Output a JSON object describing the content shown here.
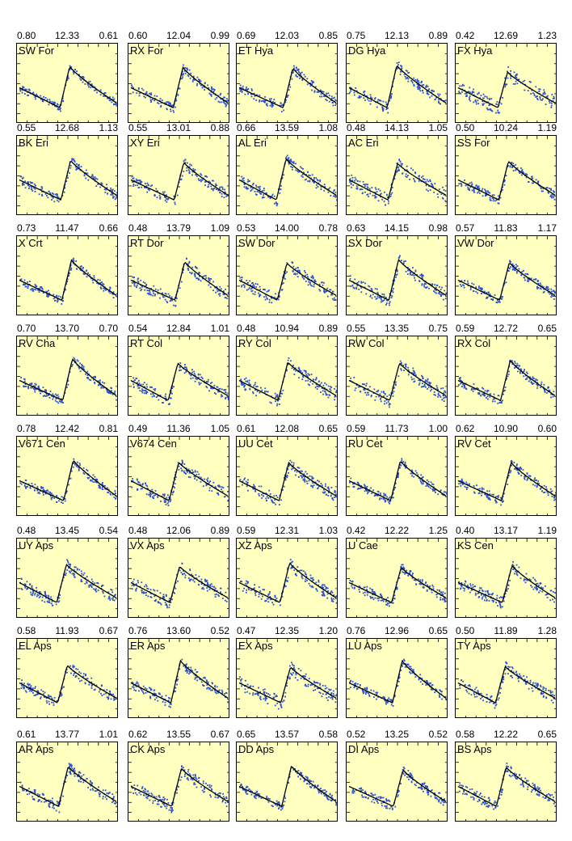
{
  "colors": {
    "panel_bg": "#ffffc0",
    "points": "#2a50d0",
    "curve": "#000000",
    "frame": "#000000"
  },
  "chart_data": [
    {
      "type": "scatter",
      "title": "SW For",
      "header": [
        "0.80",
        "12.33",
        "0.61"
      ]
    },
    {
      "type": "scatter",
      "title": "RX For",
      "header": [
        "0.60",
        "12.04",
        "0.99"
      ]
    },
    {
      "type": "scatter",
      "title": "ET Hya",
      "header": [
        "0.69",
        "12.03",
        "0.85"
      ]
    },
    {
      "type": "scatter",
      "title": "DG Hya",
      "header": [
        "0.75",
        "12.13",
        "0.89"
      ]
    },
    {
      "type": "scatter",
      "title": "FX Hya",
      "header": [
        "0.42",
        "12.69",
        "1.23"
      ]
    },
    {
      "type": "scatter",
      "title": "BK Eri",
      "header": [
        "0.55",
        "12.68",
        "1.13"
      ]
    },
    {
      "type": "scatter",
      "title": "XY Eri",
      "header": [
        "0.55",
        "13.01",
        "0.88"
      ]
    },
    {
      "type": "scatter",
      "title": "AL Eri",
      "header": [
        "0.66",
        "13.59",
        "1.08"
      ]
    },
    {
      "type": "scatter",
      "title": "AC Eri",
      "header": [
        "0.48",
        "14.13",
        "1.05"
      ]
    },
    {
      "type": "scatter",
      "title": "SS For",
      "header": [
        "0.50",
        "10.24",
        "1.19"
      ]
    },
    {
      "type": "scatter",
      "title": "X Crt",
      "header": [
        "0.73",
        "11.47",
        "0.66"
      ]
    },
    {
      "type": "scatter",
      "title": "RT Dor",
      "header": [
        "0.48",
        "13.79",
        "1.09"
      ]
    },
    {
      "type": "scatter",
      "title": "SW Dor",
      "header": [
        "0.53",
        "14.00",
        "0.78"
      ]
    },
    {
      "type": "scatter",
      "title": "SX Dor",
      "header": [
        "0.63",
        "14.15",
        "0.98"
      ]
    },
    {
      "type": "scatter",
      "title": "VW Dor",
      "header": [
        "0.57",
        "11.83",
        "1.17"
      ]
    },
    {
      "type": "scatter",
      "title": "RV Cha",
      "header": [
        "0.70",
        "13.70",
        "0.70"
      ]
    },
    {
      "type": "scatter",
      "title": "RT Col",
      "header": [
        "0.54",
        "12.84",
        "1.01"
      ]
    },
    {
      "type": "scatter",
      "title": "RY Col",
      "header": [
        "0.48",
        "10.94",
        "0.89"
      ]
    },
    {
      "type": "scatter",
      "title": "RW Col",
      "header": [
        "0.55",
        "13.35",
        "0.75"
      ]
    },
    {
      "type": "scatter",
      "title": "RX Col",
      "header": [
        "0.59",
        "12.72",
        "0.65"
      ]
    },
    {
      "type": "scatter",
      "title": "V671 Cen",
      "header": [
        "0.78",
        "12.42",
        "0.81"
      ]
    },
    {
      "type": "scatter",
      "title": "V674 Cen",
      "header": [
        "0.49",
        "11.36",
        "1.05"
      ]
    },
    {
      "type": "scatter",
      "title": "UU Cet",
      "header": [
        "0.61",
        "12.08",
        "0.65"
      ]
    },
    {
      "type": "scatter",
      "title": "RU Cet",
      "header": [
        "0.59",
        "11.73",
        "1.00"
      ]
    },
    {
      "type": "scatter",
      "title": "RV Cet",
      "header": [
        "0.62",
        "10.90",
        "0.60"
      ]
    },
    {
      "type": "scatter",
      "title": "UY Aps",
      "header": [
        "0.48",
        "13.45",
        "0.54"
      ]
    },
    {
      "type": "scatter",
      "title": "VX Aps",
      "header": [
        "0.48",
        "12.06",
        "0.89"
      ]
    },
    {
      "type": "scatter",
      "title": "XZ Aps",
      "header": [
        "0.59",
        "12.31",
        "1.03"
      ]
    },
    {
      "type": "scatter",
      "title": "U Cae",
      "header": [
        "0.42",
        "12.22",
        "1.25"
      ]
    },
    {
      "type": "scatter",
      "title": "KS Cen",
      "header": [
        "0.40",
        "13.17",
        "1.19"
      ]
    },
    {
      "type": "scatter",
      "title": "EL Aps",
      "header": [
        "0.58",
        "11.93",
        "0.67"
      ]
    },
    {
      "type": "scatter",
      "title": "ER Aps",
      "header": [
        "0.76",
        "13.60",
        "0.52"
      ]
    },
    {
      "type": "scatter",
      "title": "EX Aps",
      "header": [
        "0.47",
        "12.35",
        "1.20"
      ]
    },
    {
      "type": "scatter",
      "title": "LU Aps",
      "header": [
        "0.76",
        "12.96",
        "0.65"
      ]
    },
    {
      "type": "scatter",
      "title": "TY Aps",
      "header": [
        "0.50",
        "11.89",
        "1.28"
      ]
    },
    {
      "type": "scatter",
      "title": "AR Aps",
      "header": [
        "0.61",
        "13.77",
        "1.01"
      ]
    },
    {
      "type": "scatter",
      "title": "CK Aps",
      "header": [
        "0.62",
        "13.55",
        "0.67"
      ]
    },
    {
      "type": "scatter",
      "title": "DD Aps",
      "header": [
        "0.65",
        "13.57",
        "0.58"
      ]
    },
    {
      "type": "scatter",
      "title": "DI Aps",
      "header": [
        "0.52",
        "13.25",
        "0.52"
      ]
    },
    {
      "type": "scatter",
      "title": "BS Aps",
      "header": [
        "0.58",
        "12.22",
        "0.65"
      ]
    }
  ]
}
